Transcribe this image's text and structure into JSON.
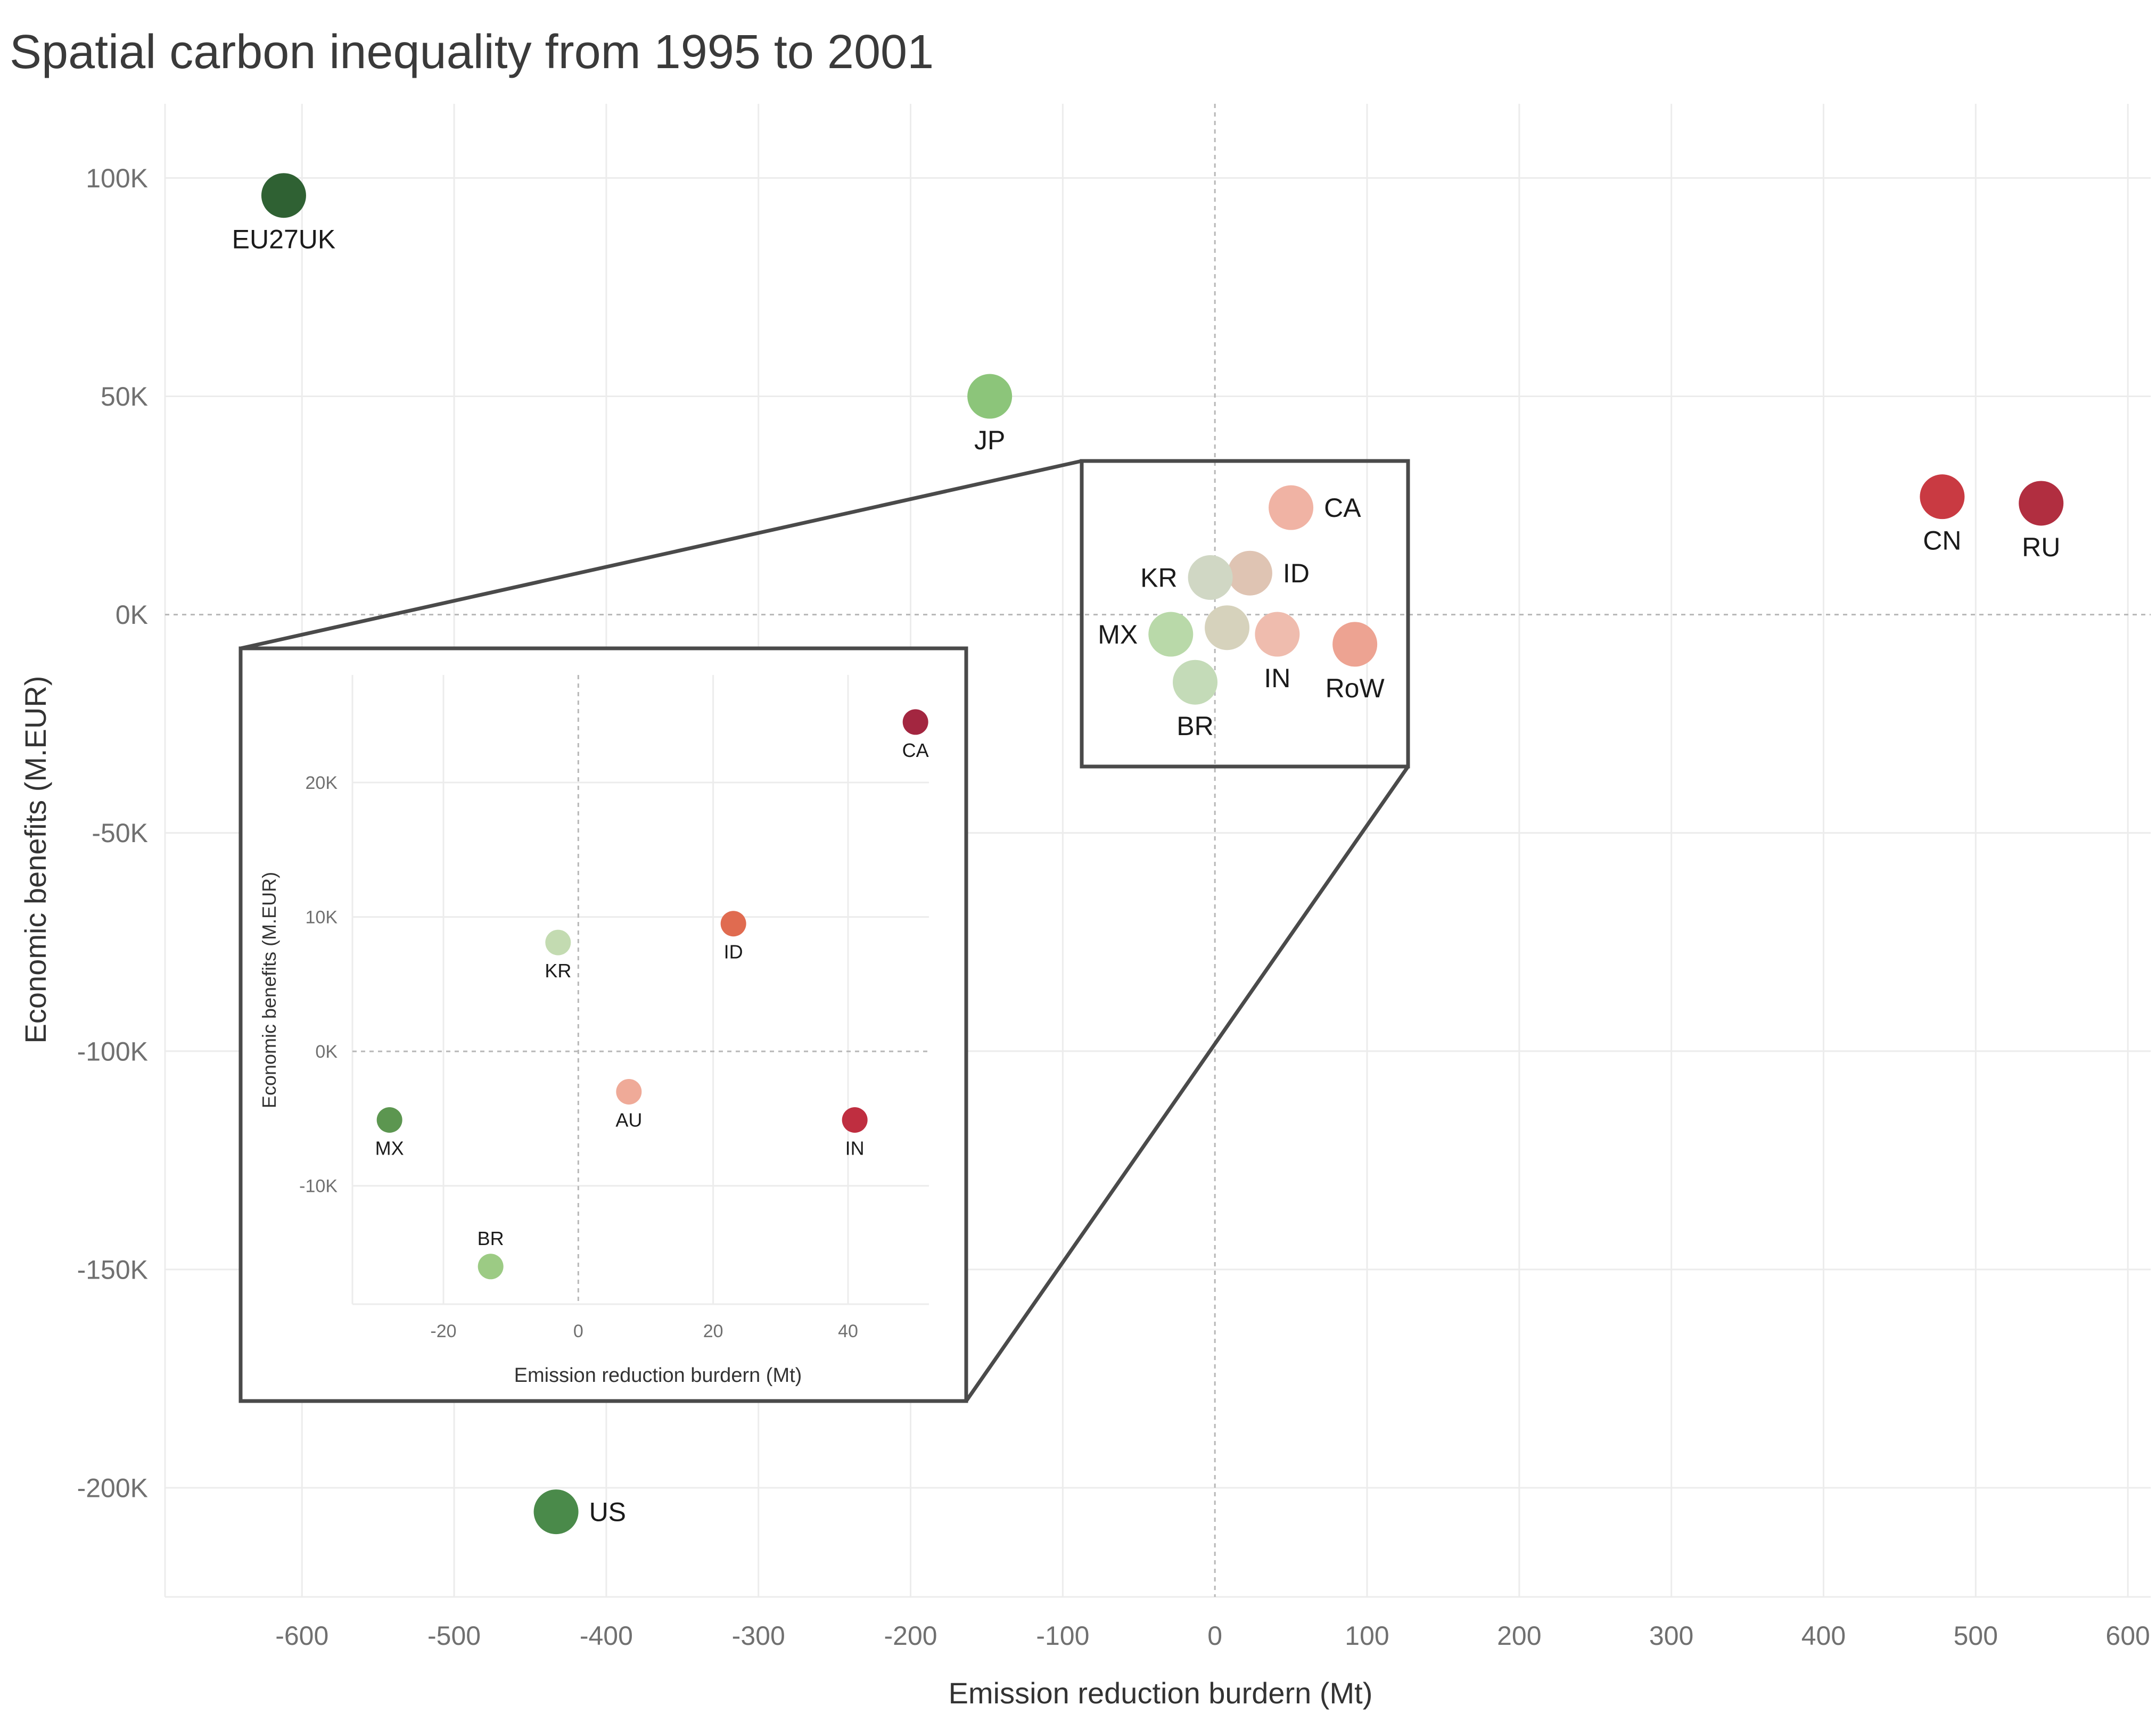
{
  "chart_data": [
    {
      "type": "scatter",
      "title": "Spatial carbon inequality from 1995 to 2001",
      "xlabel": "Emission reduction burdern (Mt)",
      "ylabel": "Economic benefits (M.EUR)",
      "xlim": [
        -690,
        615
      ],
      "ylim": [
        -225000,
        117000
      ],
      "x_ticks": [
        -600,
        -500,
        -400,
        -300,
        -200,
        -100,
        0,
        100,
        200,
        300,
        400,
        500,
        600
      ],
      "x_tick_labels": [
        "-600",
        "-500",
        "-400",
        "-300",
        "-200",
        "-100",
        "0",
        "100",
        "200",
        "300",
        "400",
        "500",
        "600"
      ],
      "y_ticks": [
        100000,
        50000,
        0,
        -50000,
        -100000,
        -150000,
        -200000
      ],
      "y_tick_labels": [
        "100K",
        "50K",
        "0K",
        "-50K",
        "-100K",
        "-150K",
        "-200K"
      ],
      "points": [
        {
          "label": "EU27UK",
          "x": -612,
          "y": 96000,
          "color": "#2f6133",
          "size": "large",
          "label_pos": "below"
        },
        {
          "label": "JP",
          "x": -148,
          "y": 50000,
          "color": "#8cc57a",
          "size": "large",
          "label_pos": "below"
        },
        {
          "label": "US",
          "x": -433,
          "y": -205500,
          "color": "#4a8a4a",
          "size": "large",
          "label_pos": "right"
        },
        {
          "label": "CN",
          "x": 478,
          "y": 27000,
          "color": "#c93a42",
          "size": "large",
          "label_pos": "below"
        },
        {
          "label": "RU",
          "x": 543,
          "y": 25500,
          "color": "#b12e40",
          "size": "large",
          "label_pos": "below"
        },
        {
          "label": "CA",
          "x": 50,
          "y": 24500,
          "color": "#f0b3a4",
          "size": "large",
          "label_pos": "right"
        },
        {
          "label": "ID",
          "x": 23,
          "y": 9500,
          "color": "#dfc4b3",
          "size": "large",
          "label_pos": "right"
        },
        {
          "label": "KR",
          "x": -3,
          "y": 8500,
          "color": "#d0d7c4",
          "size": "large",
          "label_pos": "left"
        },
        {
          "label": "MX",
          "x": -29,
          "y": -4500,
          "color": "#b9d9a9",
          "size": "large",
          "label_pos": "left"
        },
        {
          "label": "",
          "x": 8,
          "y": -3000,
          "color": "#d6d2bc",
          "size": "large",
          "label_pos": "none"
        },
        {
          "label": "IN",
          "x": 41,
          "y": -4500,
          "color": "#efbcae",
          "size": "large",
          "label_pos": "below"
        },
        {
          "label": "RoW",
          "x": 92,
          "y": -6800,
          "color": "#eda392",
          "size": "large",
          "label_pos": "below"
        },
        {
          "label": "BR",
          "x": -13,
          "y": -15500,
          "color": "#c4dbb8",
          "size": "large",
          "label_pos": "below"
        }
      ]
    },
    {
      "type": "scatter",
      "title": "",
      "xlabel": "Emission reduction burdern (Mt)",
      "ylabel": "Economic benefits (M.EUR)",
      "xlim": [
        -33.5,
        52
      ],
      "ylim": [
        -18800,
        28000
      ],
      "x_ticks": [
        -20,
        0,
        20,
        40
      ],
      "x_tick_labels": [
        "-20",
        "0",
        "20",
        "40"
      ],
      "y_ticks": [
        20000,
        10000,
        0,
        -10000
      ],
      "y_tick_labels": [
        "20K",
        "10K",
        "0K",
        "-10K"
      ],
      "points": [
        {
          "label": "CA",
          "x": 50,
          "y": 24500,
          "color": "#a32640",
          "label_pos": "below"
        },
        {
          "label": "ID",
          "x": 23,
          "y": 9500,
          "color": "#e06b50",
          "label_pos": "below"
        },
        {
          "label": "KR",
          "x": -3,
          "y": 8100,
          "color": "#c3dbb1",
          "label_pos": "below"
        },
        {
          "label": "AU",
          "x": 7.5,
          "y": -3000,
          "color": "#efaa98",
          "label_pos": "below"
        },
        {
          "label": "MX",
          "x": -28,
          "y": -5100,
          "color": "#5c9650",
          "label_pos": "below"
        },
        {
          "label": "IN",
          "x": 41,
          "y": -5100,
          "color": "#bf2e40",
          "label_pos": "below"
        },
        {
          "label": "BR",
          "x": -13,
          "y": -16000,
          "color": "#9ccb84",
          "label_pos": "above"
        }
      ]
    }
  ]
}
